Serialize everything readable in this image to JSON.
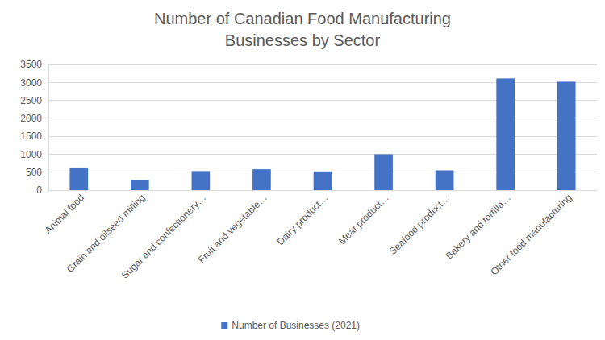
{
  "chart_data": {
    "type": "bar",
    "title": [
      "Number of Canadian Food Manufacturing",
      "Businesses by Sector"
    ],
    "categories": [
      "Animal food",
      "Grain and oilseed milling",
      "Sugar and confectionery…",
      "Fruit and vegetable…",
      "Dairy product…",
      "Meat product…",
      "Seafood product…",
      "Bakery and tortilla…",
      "Other food manufacturing"
    ],
    "series": [
      {
        "name": "Number of Businesses (2021)",
        "color": "#4472c4",
        "values": [
          630,
          280,
          530,
          580,
          520,
          1000,
          550,
          3110,
          3020
        ]
      }
    ],
    "ylim": [
      0,
      3500
    ],
    "yticks": [
      0,
      500,
      1000,
      1500,
      2000,
      2500,
      3000,
      3500
    ],
    "grid": true,
    "legend": "bottom"
  }
}
